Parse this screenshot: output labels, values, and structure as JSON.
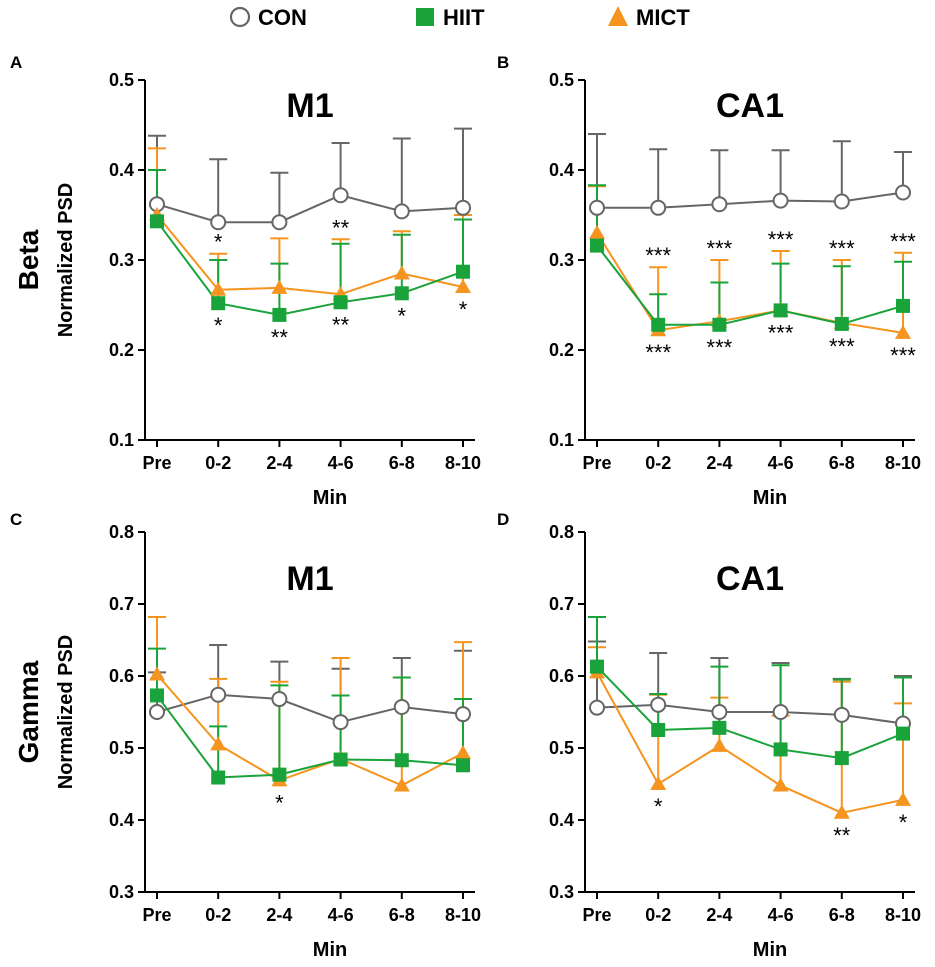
{
  "legend": [
    {
      "name": "CON",
      "shape": "circle",
      "color": "#666666"
    },
    {
      "name": "HIIT",
      "shape": "square",
      "color": "#1aa33a"
    },
    {
      "name": "MICT",
      "shape": "triangle",
      "color": "#f5941e"
    }
  ],
  "colors": {
    "CON": "#666666",
    "HIIT": "#1aa33a",
    "MICT": "#f5941e",
    "axis": "#000000"
  },
  "chart_data": [
    {
      "panel": "A",
      "type": "line",
      "band": "Beta",
      "title": "M1",
      "xlabel": "Min",
      "ylabel": "Normalized PSD",
      "categories": [
        "Pre",
        "0-2",
        "2-4",
        "4-6",
        "6-8",
        "8-10"
      ],
      "ylim": [
        0.1,
        0.5
      ],
      "yticks": [
        "0.1",
        "0.2",
        "0.3",
        "0.4",
        "0.5"
      ],
      "series": [
        {
          "name": "CON",
          "values": [
            0.362,
            0.342,
            0.342,
            0.372,
            0.354,
            0.358
          ],
          "err": [
            0.438,
            0.412,
            0.397,
            0.43,
            0.435,
            0.446
          ]
        },
        {
          "name": "MICT",
          "values": [
            0.35,
            0.267,
            0.269,
            0.262,
            0.285,
            0.27
          ],
          "err": [
            0.424,
            0.307,
            0.324,
            0.323,
            0.332,
            0.35
          ]
        },
        {
          "name": "HIIT",
          "values": [
            0.343,
            0.252,
            0.239,
            0.253,
            0.263,
            0.287
          ],
          "err": [
            0.4,
            0.3,
            0.296,
            0.318,
            0.328,
            0.345
          ]
        }
      ],
      "annotations": [
        {
          "x": "0-2",
          "pos": "above",
          "text": "*"
        },
        {
          "x": "4-6",
          "pos": "above",
          "text": "**"
        },
        {
          "x": "0-2",
          "pos": "below",
          "text": "*"
        },
        {
          "x": "2-4",
          "pos": "below",
          "text": "**"
        },
        {
          "x": "4-6",
          "pos": "below",
          "text": "**"
        },
        {
          "x": "6-8",
          "pos": "below",
          "text": "*"
        },
        {
          "x": "8-10",
          "pos": "below",
          "text": "*"
        }
      ]
    },
    {
      "panel": "B",
      "type": "line",
      "band": "",
      "title": "CA1",
      "xlabel": "Min",
      "ylabel": "",
      "categories": [
        "Pre",
        "0-2",
        "2-4",
        "4-6",
        "6-8",
        "8-10"
      ],
      "ylim": [
        0.1,
        0.5
      ],
      "yticks": [
        "0.1",
        "0.2",
        "0.3",
        "0.4",
        "0.5"
      ],
      "series": [
        {
          "name": "CON",
          "values": [
            0.358,
            0.358,
            0.362,
            0.366,
            0.365,
            0.375
          ],
          "err": [
            0.44,
            0.423,
            0.422,
            0.422,
            0.432,
            0.42
          ]
        },
        {
          "name": "MICT",
          "values": [
            0.33,
            0.222,
            0.232,
            0.244,
            0.23,
            0.219
          ],
          "err": [
            0.382,
            0.292,
            0.3,
            0.31,
            0.3,
            0.308
          ]
        },
        {
          "name": "HIIT",
          "values": [
            0.316,
            0.228,
            0.228,
            0.244,
            0.229,
            0.249
          ],
          "err": [
            0.383,
            0.262,
            0.275,
            0.296,
            0.293,
            0.298
          ]
        }
      ],
      "annotations": [
        {
          "x": "0-2",
          "pos": "above",
          "text": "***"
        },
        {
          "x": "2-4",
          "pos": "above",
          "text": "***"
        },
        {
          "x": "4-6",
          "pos": "above",
          "text": "***"
        },
        {
          "x": "6-8",
          "pos": "above",
          "text": "***"
        },
        {
          "x": "8-10",
          "pos": "above",
          "text": "***"
        },
        {
          "x": "0-2",
          "pos": "below",
          "text": "***"
        },
        {
          "x": "2-4",
          "pos": "below",
          "text": "***"
        },
        {
          "x": "4-6",
          "pos": "below",
          "text": "***"
        },
        {
          "x": "6-8",
          "pos": "below",
          "text": "***"
        },
        {
          "x": "8-10",
          "pos": "below",
          "text": "***"
        }
      ]
    },
    {
      "panel": "C",
      "type": "line",
      "band": "Gamma",
      "title": "M1",
      "xlabel": "Min",
      "ylabel": "Normalized PSD",
      "categories": [
        "Pre",
        "0-2",
        "2-4",
        "4-6",
        "6-8",
        "8-10"
      ],
      "ylim": [
        0.3,
        0.8
      ],
      "yticks": [
        "0.3",
        "0.4",
        "0.5",
        "0.6",
        "0.7",
        "0.8"
      ],
      "series": [
        {
          "name": "CON",
          "values": [
            0.55,
            0.574,
            0.568,
            0.536,
            0.557,
            0.547
          ],
          "err": [
            0.605,
            0.643,
            0.62,
            0.61,
            0.625,
            0.635
          ]
        },
        {
          "name": "MICT",
          "values": [
            0.602,
            0.505,
            0.455,
            0.485,
            0.448,
            0.493
          ],
          "err": [
            0.682,
            0.596,
            0.592,
            0.625,
            0.598,
            0.647
          ]
        },
        {
          "name": "HIIT",
          "values": [
            0.573,
            0.459,
            0.463,
            0.484,
            0.483,
            0.476
          ],
          "err": [
            0.638,
            0.53,
            0.587,
            0.573,
            0.598,
            0.568
          ]
        }
      ],
      "annotations": [
        {
          "x": "2-4",
          "pos": "below",
          "text": "*"
        }
      ]
    },
    {
      "panel": "D",
      "type": "line",
      "band": "",
      "title": "CA1",
      "xlabel": "Min",
      "ylabel": "",
      "categories": [
        "Pre",
        "0-2",
        "2-4",
        "4-6",
        "6-8",
        "8-10"
      ],
      "ylim": [
        0.3,
        0.8
      ],
      "yticks": [
        "0.3",
        "0.4",
        "0.5",
        "0.6",
        "0.7",
        "0.8"
      ],
      "series": [
        {
          "name": "CON",
          "values": [
            0.556,
            0.56,
            0.55,
            0.55,
            0.546,
            0.534
          ],
          "err": [
            0.648,
            0.632,
            0.625,
            0.618,
            0.596,
            0.6
          ]
        },
        {
          "name": "MICT",
          "values": [
            0.605,
            0.45,
            0.503,
            0.448,
            0.41,
            0.428
          ],
          "err": [
            0.64,
            0.574,
            0.57,
            0.545,
            0.592,
            0.562
          ]
        },
        {
          "name": "HIIT",
          "values": [
            0.613,
            0.525,
            0.528,
            0.498,
            0.486,
            0.52
          ],
          "err": [
            0.682,
            0.575,
            0.613,
            0.615,
            0.595,
            0.598
          ]
        }
      ],
      "annotations": [
        {
          "x": "0-2",
          "pos": "below",
          "text": "*"
        },
        {
          "x": "6-8",
          "pos": "below",
          "text": "**"
        },
        {
          "x": "8-10",
          "pos": "below",
          "text": "*"
        }
      ]
    }
  ]
}
